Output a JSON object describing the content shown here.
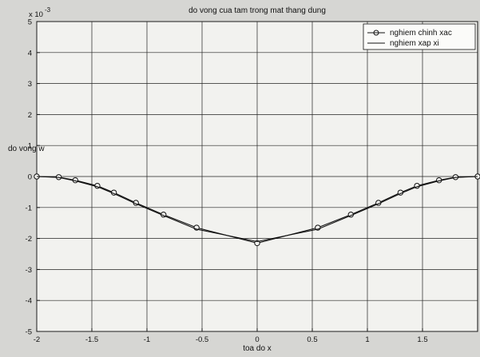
{
  "chart_data": {
    "type": "line",
    "title": "do vong cua tam trong mat thang dung",
    "xlabel": "toa do x",
    "ylabel": "do vong w",
    "y_scale_label": "x 10",
    "y_scale_exponent": "-3",
    "xlim": [
      -2,
      2
    ],
    "ylim": [
      -5,
      5
    ],
    "xticks": [
      -2,
      -1.5,
      -1,
      -0.5,
      0,
      0.5,
      1,
      1.5
    ],
    "xtick_labels": [
      "-2",
      "-1.5",
      "-1",
      "-0.5",
      "0",
      "0.5",
      "1",
      "1.5"
    ],
    "yticks": [
      -5,
      -4,
      -3,
      -2,
      -1,
      0,
      1,
      2,
      3,
      4,
      5
    ],
    "ytick_labels": [
      "-5",
      "-4",
      "-3",
      "-2",
      "-1",
      "0",
      "1",
      "2",
      "3",
      "4",
      "5"
    ],
    "grid": true,
    "legend_position": "top-right",
    "series": [
      {
        "name": "nghiem chinh xac",
        "marker": "circle",
        "x": [
          -2,
          -1.8,
          -1.65,
          -1.45,
          -1.3,
          -1.1,
          -0.85,
          -0.55,
          0,
          0.55,
          0.85,
          1.1,
          1.3,
          1.45,
          1.65,
          1.8,
          2
        ],
        "y": [
          0,
          -0.02,
          -0.12,
          -0.3,
          -0.52,
          -0.85,
          -1.23,
          -1.65,
          -2.15,
          -1.65,
          -1.23,
          -0.85,
          -0.52,
          -0.3,
          -0.12,
          -0.02,
          0
        ]
      },
      {
        "name": "nghiem xap xi",
        "marker": "none",
        "x": [
          -2,
          -1.8,
          -1.65,
          -1.45,
          -1.3,
          -1.1,
          -0.85,
          -0.55,
          0,
          0.55,
          0.85,
          1.1,
          1.3,
          1.45,
          1.65,
          1.8,
          2
        ],
        "y": [
          0,
          -0.03,
          -0.14,
          -0.33,
          -0.55,
          -0.88,
          -1.26,
          -1.7,
          -2.1,
          -1.7,
          -1.26,
          -0.88,
          -0.55,
          -0.33,
          -0.14,
          -0.03,
          0
        ]
      }
    ]
  }
}
